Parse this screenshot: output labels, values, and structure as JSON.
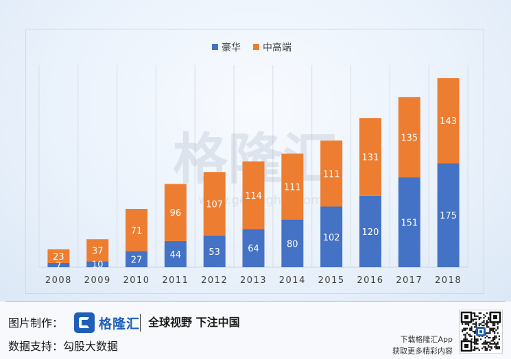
{
  "watermark": {
    "main": "格隆汇",
    "sub": "www.gelonghui.com"
  },
  "chart_data": {
    "type": "bar",
    "stacked": true,
    "categories": [
      "2008",
      "2009",
      "2010",
      "2011",
      "2012",
      "2013",
      "2014",
      "2015",
      "2016",
      "2017",
      "2018"
    ],
    "series": [
      {
        "name": "豪华",
        "color": "#4472c4",
        "values": [
          7,
          10,
          27,
          44,
          53,
          64,
          80,
          102,
          120,
          151,
          175
        ]
      },
      {
        "name": "中高端",
        "color": "#ed7d31",
        "values": [
          23,
          37,
          71,
          96,
          107,
          114,
          111,
          111,
          131,
          135,
          143
        ]
      }
    ],
    "legend_position": "top-center",
    "ylim": [
      0,
      340
    ],
    "gridlines": "vertical",
    "title": "",
    "xlabel": "",
    "ylabel": ""
  },
  "footer": {
    "made_by_label": "图片制作：",
    "brand_name": "格隆汇",
    "slogan": "全球视野 下注中国",
    "data_support_label": "数据支持：",
    "data_support_value": "勾股大数据",
    "download_line1": "下载格隆汇App",
    "download_line2": "获取更多精彩内容"
  }
}
